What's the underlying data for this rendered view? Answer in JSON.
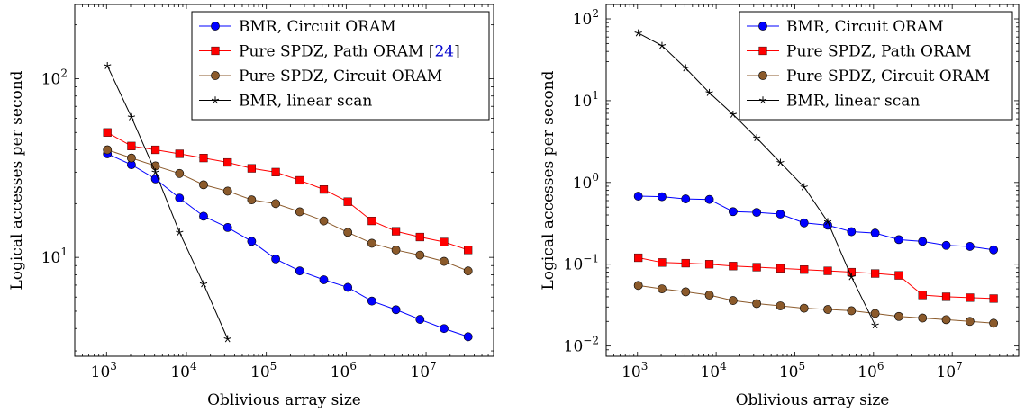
{
  "chart_data": [
    {
      "type": "line",
      "xlabel": "Oblivious array size",
      "ylabel": "Logical accesses per second",
      "xscale": "log",
      "yscale": "log",
      "xlim": [
        400,
        70000000
      ],
      "ylim": [
        2.8,
        260
      ],
      "xticks": [
        {
          "value": 1000,
          "base": "10",
          "exp": "3"
        },
        {
          "value": 10000,
          "base": "10",
          "exp": "4"
        },
        {
          "value": 100000,
          "base": "10",
          "exp": "5"
        },
        {
          "value": 1000000,
          "base": "10",
          "exp": "6"
        },
        {
          "value": 10000000,
          "base": "10",
          "exp": "7"
        }
      ],
      "yticks": [
        {
          "value": 10,
          "base": "10",
          "exp": "1"
        },
        {
          "value": 100,
          "base": "10",
          "exp": "2"
        }
      ],
      "legend_position": "top-right",
      "series": [
        {
          "name": "BMR, Circuit ORAM",
          "color": "#0000ff",
          "marker": "circle",
          "x": [
            1024,
            2048,
            4096,
            8192,
            16384,
            32768,
            65536,
            131072,
            262144,
            524288,
            1048576,
            2097152,
            4194304,
            8388608,
            16777216,
            33554432
          ],
          "y": [
            38,
            33,
            27.5,
            21.5,
            17,
            14.7,
            12.3,
            9.8,
            8.4,
            7.5,
            6.8,
            5.7,
            5.1,
            4.5,
            4.0,
            3.6
          ]
        },
        {
          "name": "Pure SPDZ, Path ORAM [24]",
          "name_main": "Pure SPDZ, Path ORAM [",
          "name_cite": "24",
          "name_end": "]",
          "color": "#ff0000",
          "marker": "square",
          "x": [
            1024,
            2048,
            4096,
            8192,
            16384,
            32768,
            65536,
            131072,
            262144,
            524288,
            1048576,
            2097152,
            4194304,
            8388608,
            16777216,
            33554432
          ],
          "y": [
            50,
            42,
            40,
            38,
            36,
            34,
            31.5,
            30,
            27,
            24,
            20.5,
            16,
            14,
            13,
            12.2,
            11
          ]
        },
        {
          "name": "Pure SPDZ, Circuit ORAM",
          "color": "#8b5a2b",
          "marker": "circle",
          "x": [
            1024,
            2048,
            4096,
            8192,
            16384,
            32768,
            65536,
            131072,
            262144,
            524288,
            1048576,
            2097152,
            4194304,
            8388608,
            16777216,
            33554432
          ],
          "y": [
            40,
            36,
            32.5,
            29.5,
            25.5,
            23.5,
            21,
            20,
            18,
            16,
            13.8,
            12,
            11,
            10.3,
            9.5,
            8.4
          ]
        },
        {
          "name": "BMR, linear scan",
          "color": "#000000",
          "marker": "star",
          "x": [
            1024,
            2048,
            4096,
            8192,
            16384,
            32768
          ],
          "y": [
            118,
            61,
            30,
            13.8,
            7.1,
            3.5
          ]
        }
      ]
    },
    {
      "type": "line",
      "xlabel": "Oblivious array size",
      "ylabel": "Logical accesses per second",
      "xscale": "log",
      "yscale": "log",
      "xlim": [
        400,
        70000000
      ],
      "ylim": [
        0.0075,
        150
      ],
      "xticks": [
        {
          "value": 1000,
          "base": "10",
          "exp": "3"
        },
        {
          "value": 10000,
          "base": "10",
          "exp": "4"
        },
        {
          "value": 100000,
          "base": "10",
          "exp": "5"
        },
        {
          "value": 1000000,
          "base": "10",
          "exp": "6"
        },
        {
          "value": 10000000,
          "base": "10",
          "exp": "7"
        }
      ],
      "yticks": [
        {
          "value": 0.01,
          "base": "10",
          "exp": "−2"
        },
        {
          "value": 0.1,
          "base": "10",
          "exp": "−1"
        },
        {
          "value": 1,
          "base": "10",
          "exp": "0"
        },
        {
          "value": 10,
          "base": "10",
          "exp": "1"
        },
        {
          "value": 100,
          "base": "10",
          "exp": "2"
        }
      ],
      "legend_position": "top-right",
      "series": [
        {
          "name": "BMR, Circuit ORAM",
          "color": "#0000ff",
          "marker": "circle",
          "x": [
            1024,
            2048,
            4096,
            8192,
            16384,
            32768,
            65536,
            131072,
            262144,
            524288,
            1048576,
            2097152,
            4194304,
            8388608,
            16777216,
            33554432
          ],
          "y": [
            0.68,
            0.67,
            0.63,
            0.62,
            0.44,
            0.43,
            0.41,
            0.32,
            0.3,
            0.25,
            0.24,
            0.2,
            0.19,
            0.17,
            0.165,
            0.15
          ]
        },
        {
          "name": "Pure SPDZ, Path ORAM",
          "color": "#ff0000",
          "marker": "square",
          "x": [
            1024,
            2048,
            4096,
            8192,
            16384,
            32768,
            65536,
            131072,
            262144,
            524288,
            1048576,
            2097152,
            4194304,
            8388608,
            16777216,
            33554432
          ],
          "y": [
            0.12,
            0.105,
            0.103,
            0.1,
            0.095,
            0.092,
            0.089,
            0.086,
            0.083,
            0.08,
            0.077,
            0.073,
            0.042,
            0.04,
            0.039,
            0.038
          ]
        },
        {
          "name": "Pure SPDZ, Circuit ORAM",
          "color": "#8b5a2b",
          "marker": "circle",
          "x": [
            1024,
            2048,
            4096,
            8192,
            16384,
            32768,
            65536,
            131072,
            262144,
            524288,
            1048576,
            2097152,
            4194304,
            8388608,
            16777216,
            33554432
          ],
          "y": [
            0.055,
            0.05,
            0.046,
            0.042,
            0.036,
            0.033,
            0.031,
            0.029,
            0.028,
            0.027,
            0.025,
            0.023,
            0.022,
            0.021,
            0.02,
            0.019
          ]
        },
        {
          "name": "BMR, linear scan",
          "color": "#000000",
          "marker": "star",
          "x": [
            1024,
            2048,
            4096,
            8192,
            16384,
            32768,
            65536,
            131072,
            262144,
            524288,
            1048576
          ],
          "y": [
            67,
            47,
            25,
            12.5,
            6.8,
            3.5,
            1.75,
            0.88,
            0.33,
            0.07,
            0.018
          ]
        }
      ]
    }
  ],
  "colors": {
    "cite": "#0000cc"
  }
}
